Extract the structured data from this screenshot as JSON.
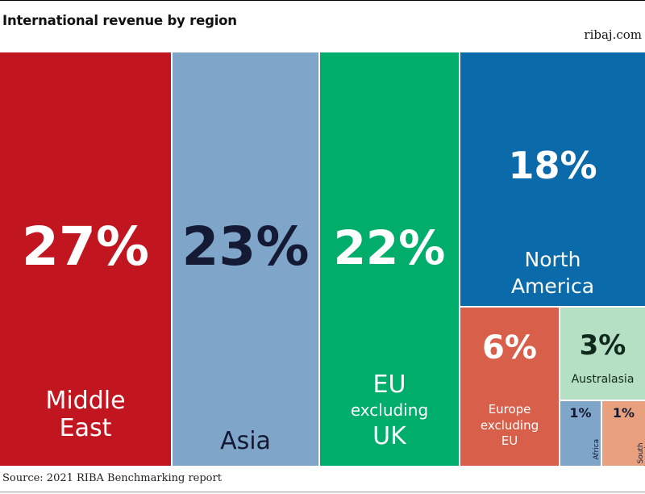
{
  "header": {
    "title": "International revenue by region",
    "brand": "ribaj.com"
  },
  "footer": {
    "source": "Source: 2021 RIBA Benchmarking report"
  },
  "chart_data": {
    "type": "treemap",
    "title": "International revenue by region",
    "unit": "%",
    "series": [
      {
        "name": "Middle East",
        "label": "Middle\nEast",
        "value": 27,
        "display": "27%",
        "color": "#c1151f",
        "text_color": "#ffffff"
      },
      {
        "name": "Asia",
        "label": "Asia",
        "value": 23,
        "display": "23%",
        "color": "#7fa5c9",
        "text_color": "#141a33"
      },
      {
        "name": "EU excluding UK",
        "label": "EU\nexcluding\nUK",
        "value": 22,
        "display": "22%",
        "color": "#00ad6b",
        "text_color": "#ffffff"
      },
      {
        "name": "North America",
        "label": "North\nAmerica",
        "value": 18,
        "display": "18%",
        "color": "#0b6aa9",
        "text_color": "#ffffff"
      },
      {
        "name": "Europe excluding EU",
        "label": "Europe\nexcluding\nEU",
        "value": 6,
        "display": "6%",
        "color": "#d8604b",
        "text_color": "#ffffff"
      },
      {
        "name": "Australasia",
        "label": "Australasia",
        "value": 3,
        "display": "3%",
        "color": "#b5e0c3",
        "text_color": "#0f2a1d"
      },
      {
        "name": "Africa",
        "label": "Africa",
        "value": 1,
        "display": "1%",
        "color": "#7fa5c9",
        "text_color": "#141a33"
      },
      {
        "name": "South America",
        "label": "South\nAmerica",
        "value": 1,
        "display": "1%",
        "color": "#e9a07f",
        "text_color": "#141a33"
      }
    ]
  }
}
